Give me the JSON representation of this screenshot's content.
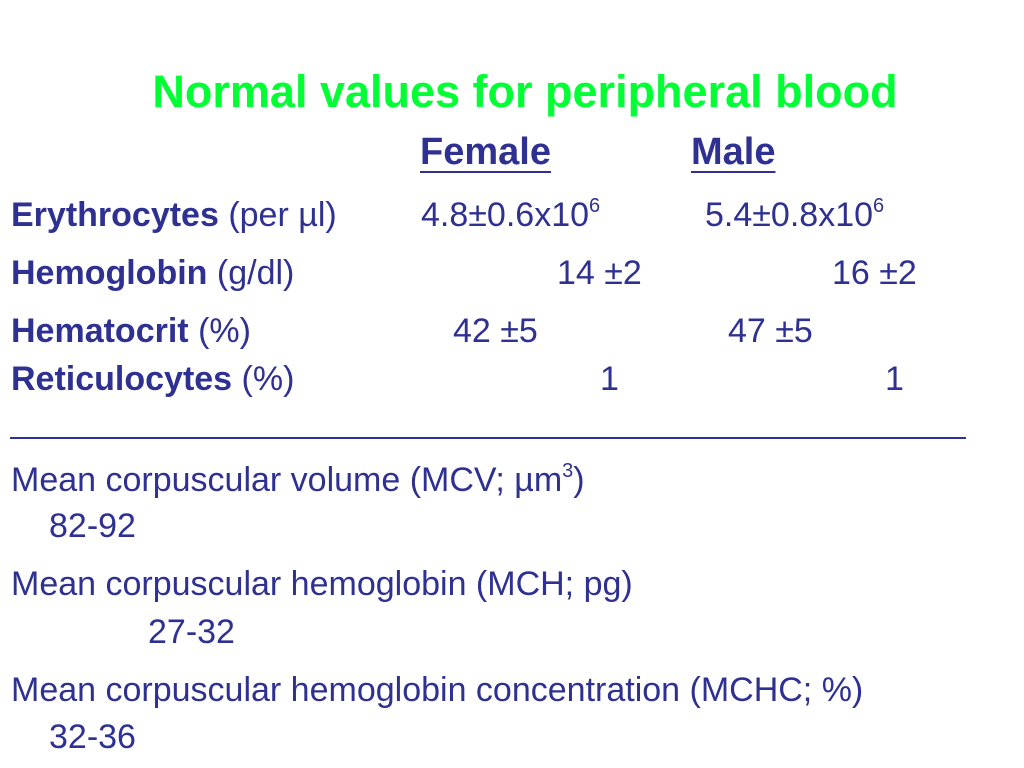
{
  "title": "Normal values for peripheral blood",
  "header": {
    "female": "Female",
    "male": "Male"
  },
  "rows": [
    {
      "name": "Erythrocytes",
      "unit": "(per µl)",
      "female": "4.8±0.6x10",
      "female_exp": "6",
      "male": "5.4±0.8x10",
      "male_exp": "6"
    },
    {
      "name": "Hemoglobin",
      "unit": "(g/dl)",
      "female": "14 ±2",
      "male": "16 ±2"
    },
    {
      "name": "Hematocrit",
      "unit": "(%)",
      "female": "42 ±5",
      "male": "47 ±5"
    },
    {
      "name": "Reticulocytes",
      "unit": "(%)",
      "female": "1",
      "male": "1"
    }
  ],
  "indices": [
    {
      "label": "Mean corpuscular volume (MCV; µm",
      "label_exp": "3",
      "label_end": ")",
      "value": "82-92"
    },
    {
      "label": "Mean corpuscular hemoglobin (MCH; pg)",
      "value": "27-32"
    },
    {
      "label": "Mean corpuscular hemoglobin concentration (MCHC; %)",
      "value": "32-36"
    }
  ]
}
